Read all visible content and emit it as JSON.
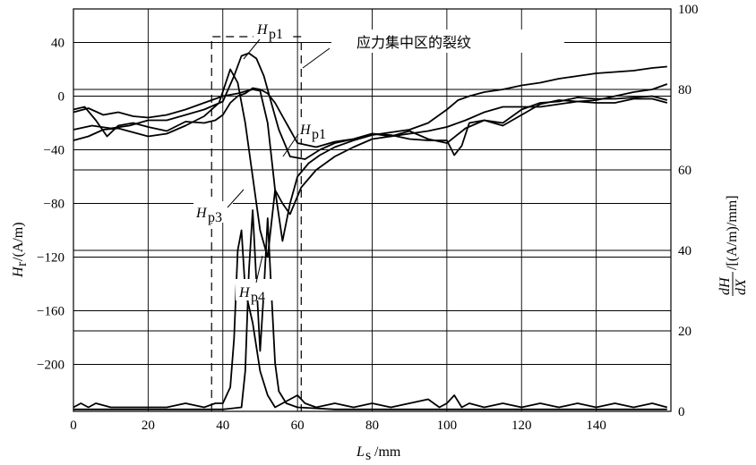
{
  "chart_data": {
    "type": "line",
    "x_axis": {
      "label_main": "L",
      "label_sub": "s",
      "label_unit": "/mm",
      "range": [
        0,
        160
      ],
      "ticks": [
        "0",
        "20",
        "40",
        "60",
        "80",
        "100",
        "120",
        "140"
      ]
    },
    "y_left": {
      "label_main": "H",
      "label_sub": "r",
      "label_unit": "/(A/m)",
      "range": [
        -235,
        65
      ],
      "ticks": [
        "40",
        "0",
        "−40",
        "−80",
        "−120",
        "−160",
        "−200"
      ]
    },
    "y_right": {
      "label_num": "dH",
      "label_den": "dX",
      "label_unit": "/[(A/m)/mm]",
      "range": [
        0,
        100
      ],
      "ticks": [
        "100",
        "80",
        "60",
        "40",
        "20",
        "0"
      ]
    },
    "annotation_zone": "应力集中区的裂纹",
    "curve_labels": [
      {
        "main": "H",
        "sub": "p1"
      },
      {
        "main": "H",
        "sub": "p1"
      },
      {
        "main": "H",
        "sub": "p3"
      },
      {
        "main": "H",
        "sub": "p4"
      }
    ],
    "zone_x": [
      37,
      61
    ],
    "series": [
      {
        "axis": "left",
        "x": [
          0,
          5,
          10,
          15,
          20,
          25,
          30,
          35,
          40,
          43,
          45,
          47,
          49,
          51,
          53,
          55,
          58,
          62,
          66,
          70,
          75,
          80,
          85,
          90,
          95,
          100,
          105,
          110,
          115,
          120,
          125,
          130,
          135,
          140,
          145,
          150,
          155,
          159
        ],
        "y": [
          -25,
          -22,
          -24,
          -22,
          -18,
          -18,
          -14,
          -10,
          -4,
          15,
          30,
          32,
          28,
          15,
          -5,
          -25,
          -45,
          -47,
          -40,
          -35,
          -32,
          -28,
          -30,
          -26,
          -32,
          -35,
          -24,
          -18,
          -20,
          -10,
          -5,
          -4,
          -1,
          -2,
          -2,
          -1,
          0,
          -3
        ]
      },
      {
        "axis": "left",
        "x": [
          0,
          4,
          8,
          12,
          16,
          20,
          25,
          30,
          35,
          40,
          44,
          48,
          50,
          52,
          54,
          56,
          58,
          60,
          63,
          66,
          70,
          75,
          80,
          85,
          90,
          95,
          100,
          103,
          106,
          110,
          115,
          120,
          125,
          130,
          135,
          140,
          145,
          150,
          155,
          159
        ],
        "y": [
          -12,
          -9,
          -14,
          -12,
          -15,
          -16,
          -14,
          -10,
          -5,
          0,
          2,
          5,
          4,
          -20,
          -70,
          -108,
          -80,
          -60,
          -50,
          -44,
          -38,
          -33,
          -29,
          -27,
          -25,
          -20,
          -10,
          -3,
          0,
          3,
          5,
          8,
          10,
          13,
          15,
          17,
          18,
          19,
          21,
          22
        ]
      },
      {
        "axis": "left",
        "x": [
          0,
          4,
          8,
          12,
          16,
          20,
          25,
          30,
          35,
          39,
          42,
          44,
          46,
          48,
          50,
          52,
          54,
          56,
          58,
          61,
          65,
          70,
          75,
          80,
          85,
          90,
          95,
          100,
          105,
          110,
          115,
          120,
          125,
          130,
          135,
          140,
          145,
          150,
          155,
          159
        ],
        "y": [
          -33,
          -30,
          -25,
          -24,
          -27,
          -30,
          -28,
          -22,
          -15,
          -5,
          20,
          10,
          -20,
          -60,
          -100,
          -120,
          -70,
          -80,
          -88,
          -68,
          -55,
          -45,
          -38,
          -32,
          -30,
          -28,
          -26,
          -23,
          -18,
          -12,
          -8,
          -8,
          -8,
          -6,
          -4,
          -3,
          0,
          3,
          5,
          9
        ]
      },
      {
        "axis": "left",
        "x": [
          0,
          3,
          6,
          9,
          12,
          16,
          20,
          25,
          30,
          35,
          38,
          40,
          42,
          44,
          46,
          48,
          50,
          52,
          54,
          56,
          58,
          60,
          65,
          70,
          75,
          80,
          85,
          90,
          95,
          100,
          102,
          104,
          106,
          110,
          115,
          120,
          125,
          130,
          135,
          140,
          145,
          150,
          155,
          159
        ],
        "y": [
          -10,
          -8,
          -18,
          -30,
          -22,
          -20,
          -23,
          -26,
          -19,
          -20,
          -18,
          -14,
          -5,
          0,
          2,
          6,
          5,
          2,
          -5,
          -15,
          -25,
          -35,
          -38,
          -34,
          -32,
          -28,
          -29,
          -32,
          -33,
          -33,
          -44,
          -37,
          -20,
          -18,
          -22,
          -14,
          -6,
          -3,
          -4,
          -5,
          -5,
          -2,
          -2,
          -5
        ]
      },
      {
        "axis": "right",
        "x": [
          0,
          2,
          4,
          6,
          10,
          14,
          20,
          25,
          30,
          35,
          38,
          40,
          42,
          43,
          44,
          45,
          46,
          48,
          50,
          52,
          54,
          56,
          58,
          60,
          62,
          65,
          70,
          75,
          80,
          85,
          90,
          95,
          98,
          100,
          102,
          104,
          106,
          110,
          115,
          120,
          125,
          130,
          135,
          140,
          145,
          150,
          155,
          159
        ],
        "y": [
          1,
          2,
          1,
          2,
          1,
          1,
          1,
          1,
          2,
          1,
          2,
          2,
          6,
          18,
          40,
          45,
          30,
          22,
          10,
          4,
          1,
          2,
          3,
          4,
          2,
          1,
          2,
          1,
          2,
          1,
          2,
          3,
          1,
          2,
          4,
          1,
          2,
          1,
          2,
          1,
          2,
          1,
          2,
          1,
          2,
          1,
          2,
          1
        ]
      },
      {
        "axis": "right",
        "x": [
          0,
          10,
          20,
          30,
          40,
          45,
          46,
          47,
          48,
          49,
          50,
          51,
          52,
          53,
          54,
          55,
          57,
          60,
          70,
          80,
          90,
          100,
          110,
          120,
          130,
          140,
          150,
          159
        ],
        "y": [
          0.5,
          0.5,
          0.5,
          0.5,
          0.5,
          1,
          10,
          35,
          50,
          32,
          15,
          30,
          48,
          30,
          12,
          5,
          2,
          1,
          0.5,
          0.5,
          0.5,
          0.5,
          0.5,
          0.5,
          0.5,
          0.5,
          0.5,
          0.5
        ]
      }
    ]
  }
}
